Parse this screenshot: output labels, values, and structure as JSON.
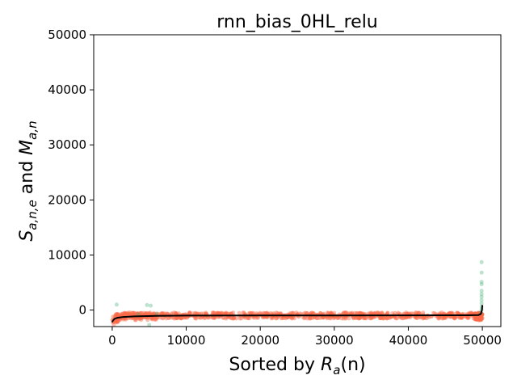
{
  "chart_data": {
    "type": "scatter",
    "title": "rnn_bias_0HL_relu",
    "xlabel": {
      "prefix": "Sorted by ",
      "var": "R",
      "sub": "a",
      "suffix": "(n)"
    },
    "ylabel": {
      "var1": "S",
      "sub1": "a,n,e",
      "mid": " and ",
      "var2": "M",
      "sub2": "a,n"
    },
    "xlim": [
      -2500,
      52500
    ],
    "ylim": [
      -3000,
      50000
    ],
    "xticks": [
      0,
      10000,
      20000,
      30000,
      40000,
      50000
    ],
    "xtick_labels": [
      "0",
      "10000",
      "20000",
      "30000",
      "40000",
      "50000"
    ],
    "yticks": [
      0,
      10000,
      20000,
      30000,
      40000,
      50000
    ],
    "ytick_labels": [
      "0",
      "10000",
      "20000",
      "30000",
      "40000",
      "50000"
    ],
    "grid": false,
    "series": [
      {
        "role": "S points",
        "color": "#fa6a4a",
        "band": {
          "x_start": 0,
          "x_end": 50000,
          "y_center": -1000,
          "y_spread": 550,
          "y_low_start": -2300
        }
      },
      {
        "role": "M points",
        "color": "#41ae76",
        "points": [
          {
            "x": 600,
            "y": 1000
          },
          {
            "x": 4700,
            "y": 900
          },
          {
            "x": 5200,
            "y": 800
          },
          {
            "x": 5000,
            "y": -2700
          },
          {
            "x": 3500,
            "y": -800
          },
          {
            "x": 6000,
            "y": -700
          },
          {
            "x": 49900,
            "y": 8700
          },
          {
            "x": 49900,
            "y": 6800
          },
          {
            "x": 49900,
            "y": 5100
          },
          {
            "x": 49900,
            "y": 4700
          },
          {
            "x": 49900,
            "y": 3500
          },
          {
            "x": 49900,
            "y": 2900
          },
          {
            "x": 49900,
            "y": 2400
          },
          {
            "x": 49900,
            "y": 1800
          },
          {
            "x": 49900,
            "y": 1200
          },
          {
            "x": 49900,
            "y": 600
          },
          {
            "x": 49900,
            "y": 100
          },
          {
            "x": 49800,
            "y": -400
          }
        ]
      },
      {
        "role": "mean line",
        "color": "#000000",
        "x": [
          0,
          100,
          300,
          700,
          1500,
          3000,
          6000,
          10000,
          20000,
          30000,
          40000,
          48000,
          49500,
          49800,
          49950,
          50000
        ],
        "y": [
          -2200,
          -1900,
          -1600,
          -1400,
          -1250,
          -1150,
          -1050,
          -1000,
          -980,
          -970,
          -960,
          -950,
          -900,
          -700,
          0,
          900
        ]
      }
    ]
  }
}
